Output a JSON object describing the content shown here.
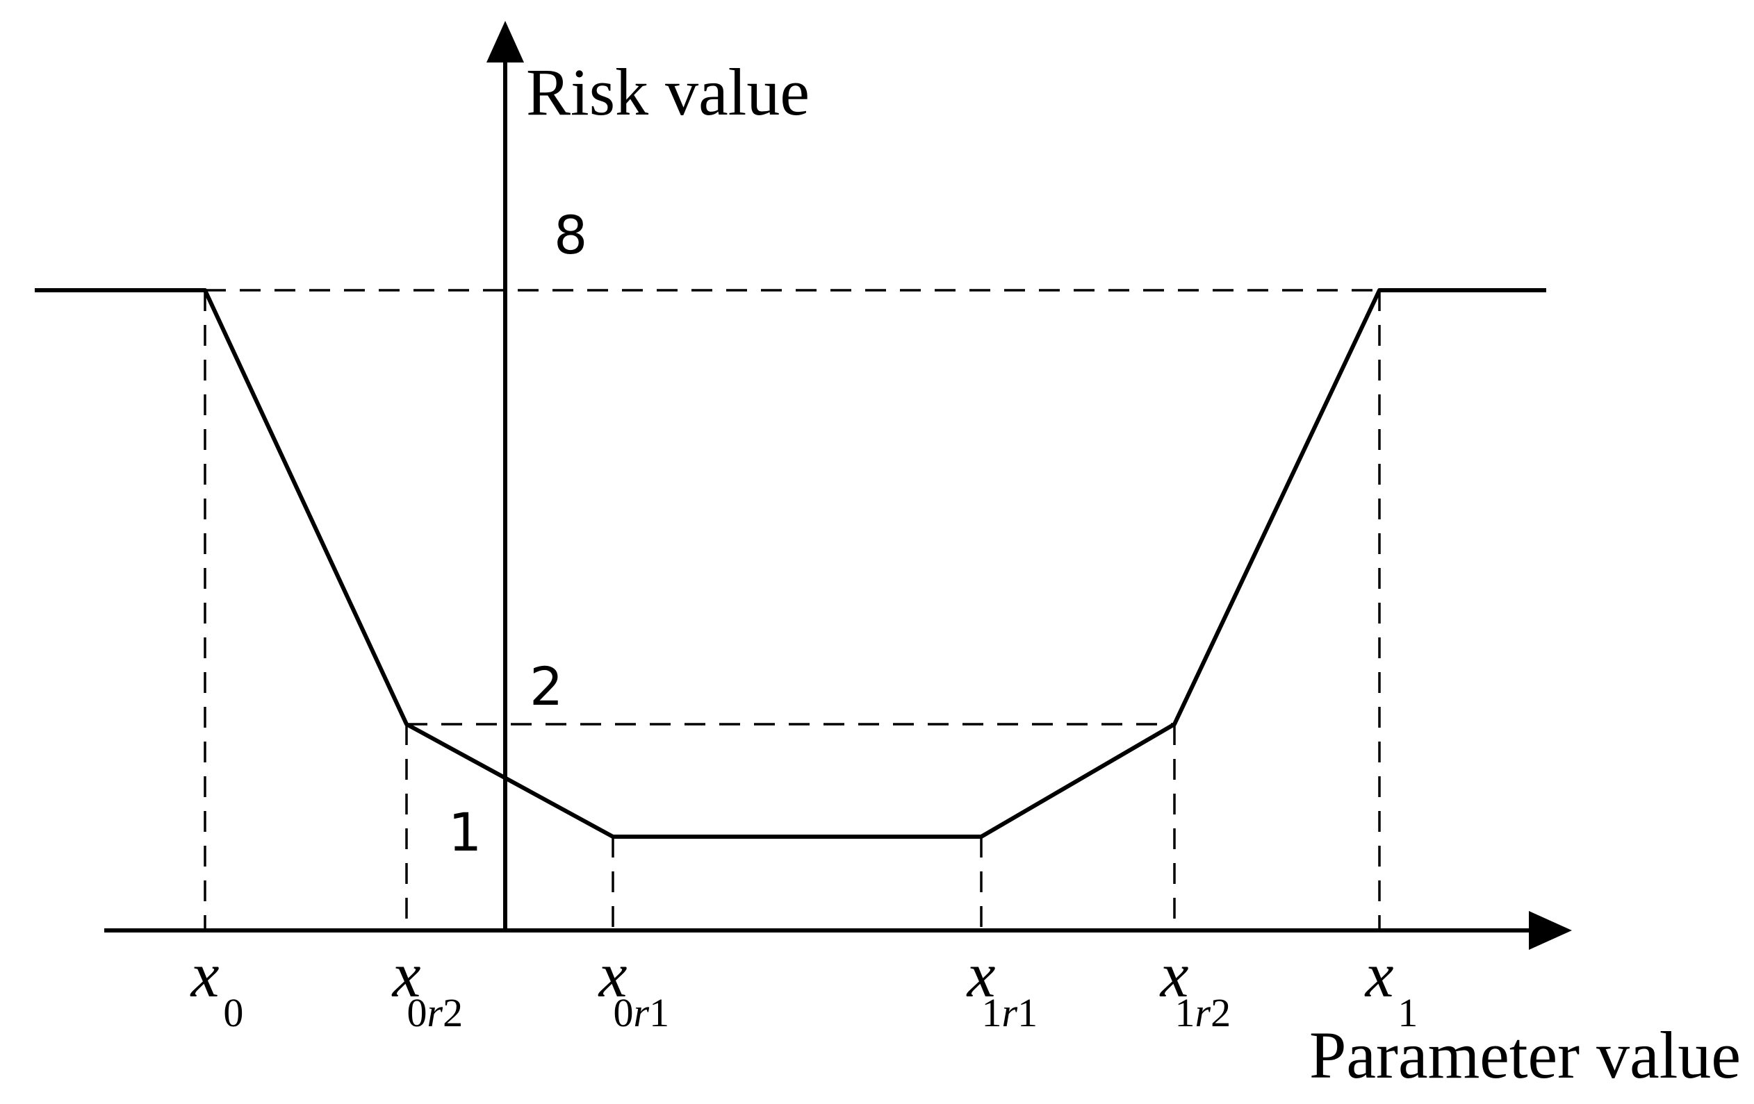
{
  "axes": {
    "y_label": "Risk value",
    "x_label": "Parameter value"
  },
  "levels": [
    {
      "id": "level-8",
      "text": "8",
      "value": 8
    },
    {
      "id": "level-2",
      "text": "2",
      "value": 2
    },
    {
      "id": "level-1",
      "text": "1",
      "value": 1
    }
  ],
  "ticks": [
    {
      "id": "x0",
      "base": "x",
      "sub": [
        {
          "t": "0",
          "italic": false
        }
      ]
    },
    {
      "id": "x0r2",
      "base": "x",
      "sub": [
        {
          "t": "0",
          "italic": false
        },
        {
          "t": "r",
          "italic": true
        },
        {
          "t": "2",
          "italic": false
        }
      ]
    },
    {
      "id": "x0r1",
      "base": "x",
      "sub": [
        {
          "t": "0",
          "italic": false
        },
        {
          "t": "r",
          "italic": true
        },
        {
          "t": "1",
          "italic": false
        }
      ]
    },
    {
      "id": "x1r1",
      "base": "x",
      "sub": [
        {
          "t": "1",
          "italic": false
        },
        {
          "t": "r",
          "italic": true
        },
        {
          "t": "1",
          "italic": false
        }
      ]
    },
    {
      "id": "x1r2",
      "base": "x",
      "sub": [
        {
          "t": "1",
          "italic": false
        },
        {
          "t": "r",
          "italic": true
        },
        {
          "t": "2",
          "italic": false
        }
      ]
    },
    {
      "id": "x1",
      "base": "x",
      "sub": [
        {
          "t": "1",
          "italic": false
        }
      ]
    }
  ],
  "curve": {
    "description_points": [
      "x0",
      "x0r2",
      "x0r1",
      "x1r1",
      "x1r2",
      "x1"
    ],
    "risk_levels": [
      8,
      2,
      1,
      1,
      2,
      8
    ],
    "outside_level": 8
  }
}
